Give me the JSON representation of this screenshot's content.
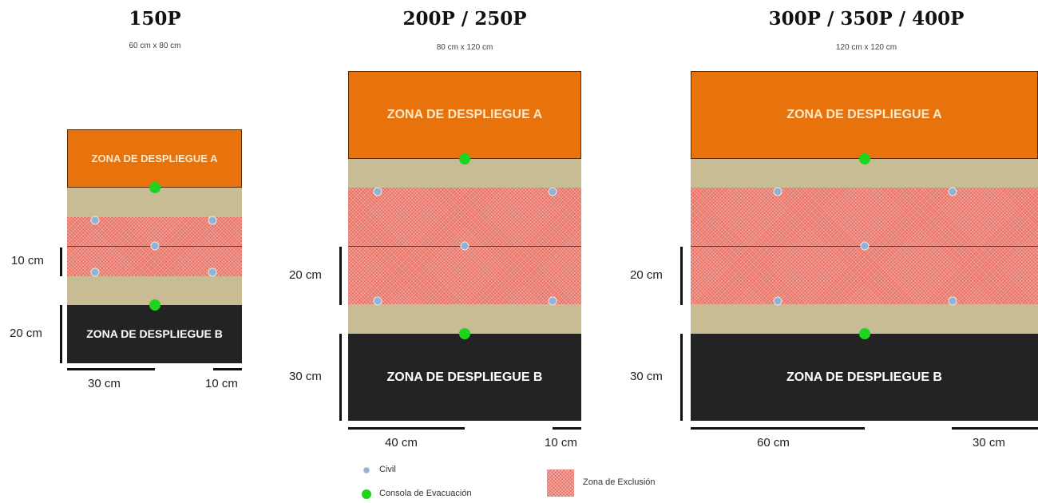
{
  "boards": {
    "small": {
      "title": "150P",
      "subtitle": "60 cm x 80 cm",
      "zone_a": "ZONA DE DESPLIEGUE A",
      "zone_b": "ZONA DE DESPLIEGUE B",
      "dim_left_top": "10 cm",
      "dim_left_bottom": "20 cm",
      "dim_bottom_left": "30 cm",
      "dim_bottom_right": "10 cm"
    },
    "medium": {
      "title": "200P / 250P",
      "subtitle": "80 cm x 120 cm",
      "zone_a": "ZONA DE DESPLIEGUE A",
      "zone_b": "ZONA DE DESPLIEGUE B",
      "dim_left_top": "20 cm",
      "dim_left_bottom": "30 cm",
      "dim_bottom_left": "40 cm",
      "dim_bottom_right": "10 cm"
    },
    "large": {
      "title": "300P / 350P / 400P",
      "subtitle": "120 cm x 120 cm",
      "zone_a": "ZONA DE DESPLIEGUE A",
      "zone_b": "ZONA DE DESPLIEGUE B",
      "dim_left_top": "20 cm",
      "dim_left_bottom": "30 cm",
      "dim_bottom_left": "60 cm",
      "dim_bottom_right": "30 cm"
    }
  },
  "legend": {
    "civil": "Civil",
    "console": "Consola de Evacuación",
    "exclusion": "Zona de Exclusión"
  },
  "colors": {
    "zone_a": "#e8720c",
    "zone_b": "#232323",
    "neutral_band": "#c8bc95",
    "exclusion": "#e77062",
    "console_dot": "#1ed41e",
    "civil_dot": "#8fb3d6"
  }
}
